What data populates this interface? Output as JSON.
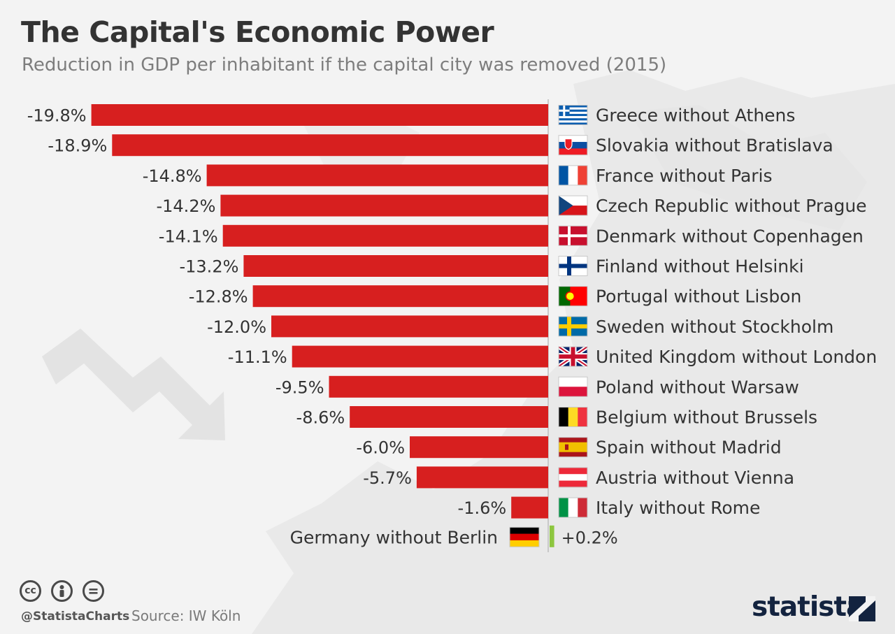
{
  "header": {
    "title": "The Capital's Economic Power",
    "subtitle": "Reduction in GDP per inhabitant if the capital city was removed (2015)"
  },
  "footer": {
    "handle": "@StatistaCharts",
    "source": "Source: IW Köln",
    "brand": "statista"
  },
  "colors": {
    "bar_negative": "#d71f1f",
    "bar_positive": "#8dc63f",
    "text": "#333333",
    "background": "#f3f3f3",
    "brand": "#13233f"
  },
  "icons": [
    "cc-icon",
    "by-person-icon",
    "nd-equals-icon",
    "statista-logo-icon",
    "country-flag-icon"
  ],
  "chart_data": {
    "type": "bar",
    "orientation": "horizontal",
    "unit": "%",
    "categories": [
      "Greece without Athens",
      "Slovakia without Bratislava",
      "France without Paris",
      "Czech Republic without Prague",
      "Denmark without Copenhagen",
      "Finland without Helsinki",
      "Portugal without Lisbon",
      "Sweden without Stockholm",
      "United Kingdom without London",
      "Poland without Warsaw",
      "Belgium without Brussels",
      "Spain without Madrid",
      "Austria without Vienna",
      "Italy without Rome",
      "Germany without Berlin"
    ],
    "values": [
      -19.8,
      -18.9,
      -14.8,
      -14.2,
      -14.1,
      -13.2,
      -12.8,
      -12.0,
      -11.1,
      -9.5,
      -8.6,
      -6.0,
      -5.7,
      -1.6,
      0.2
    ],
    "value_labels": [
      "-19.8%",
      "-18.9%",
      "-14.8%",
      "-14.2%",
      "-14.1%",
      "-13.2%",
      "-12.8%",
      "-12.0%",
      "-11.1%",
      "-9.5%",
      "-8.6%",
      "-6.0%",
      "-5.7%",
      "-1.6%",
      "+0.2%"
    ],
    "flags": [
      "greece",
      "slovakia",
      "france",
      "czech",
      "denmark",
      "finland",
      "portugal",
      "sweden",
      "uk",
      "poland",
      "belgium",
      "spain",
      "austria",
      "italy",
      "germany"
    ],
    "xlim": [
      -20,
      0
    ],
    "grid": false,
    "legend": "none"
  }
}
